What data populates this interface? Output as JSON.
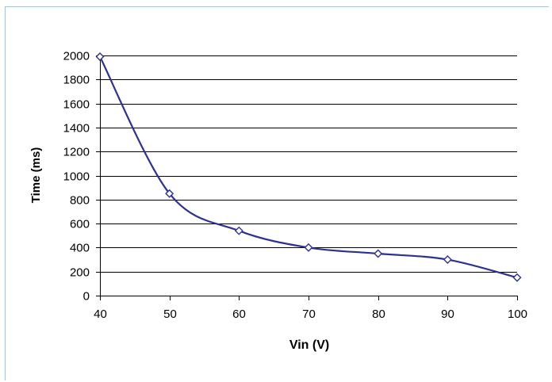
{
  "chart_data": {
    "type": "line",
    "title": "",
    "xlabel": "Vin (V)",
    "ylabel": "Time (ms)",
    "xlim": [
      40,
      100
    ],
    "ylim": [
      0,
      2000
    ],
    "x_ticks": [
      40,
      50,
      60,
      70,
      80,
      90,
      100
    ],
    "y_ticks": [
      0,
      200,
      400,
      600,
      800,
      1000,
      1200,
      1400,
      1600,
      1800,
      2000
    ],
    "grid": "horizontal",
    "legend": "none",
    "smoothed": true,
    "series": [
      {
        "x": [
          40,
          50,
          60,
          70,
          80,
          90,
          100
        ],
        "values": [
          1990,
          850,
          540,
          400,
          350,
          300,
          150
        ],
        "color": "#2e3192",
        "marker": "diamond-open"
      }
    ]
  },
  "colors": {
    "gridline": "#000000",
    "frame": "#a8c4d6",
    "line": "#2e3192",
    "marker_fill": "#ffffff"
  }
}
